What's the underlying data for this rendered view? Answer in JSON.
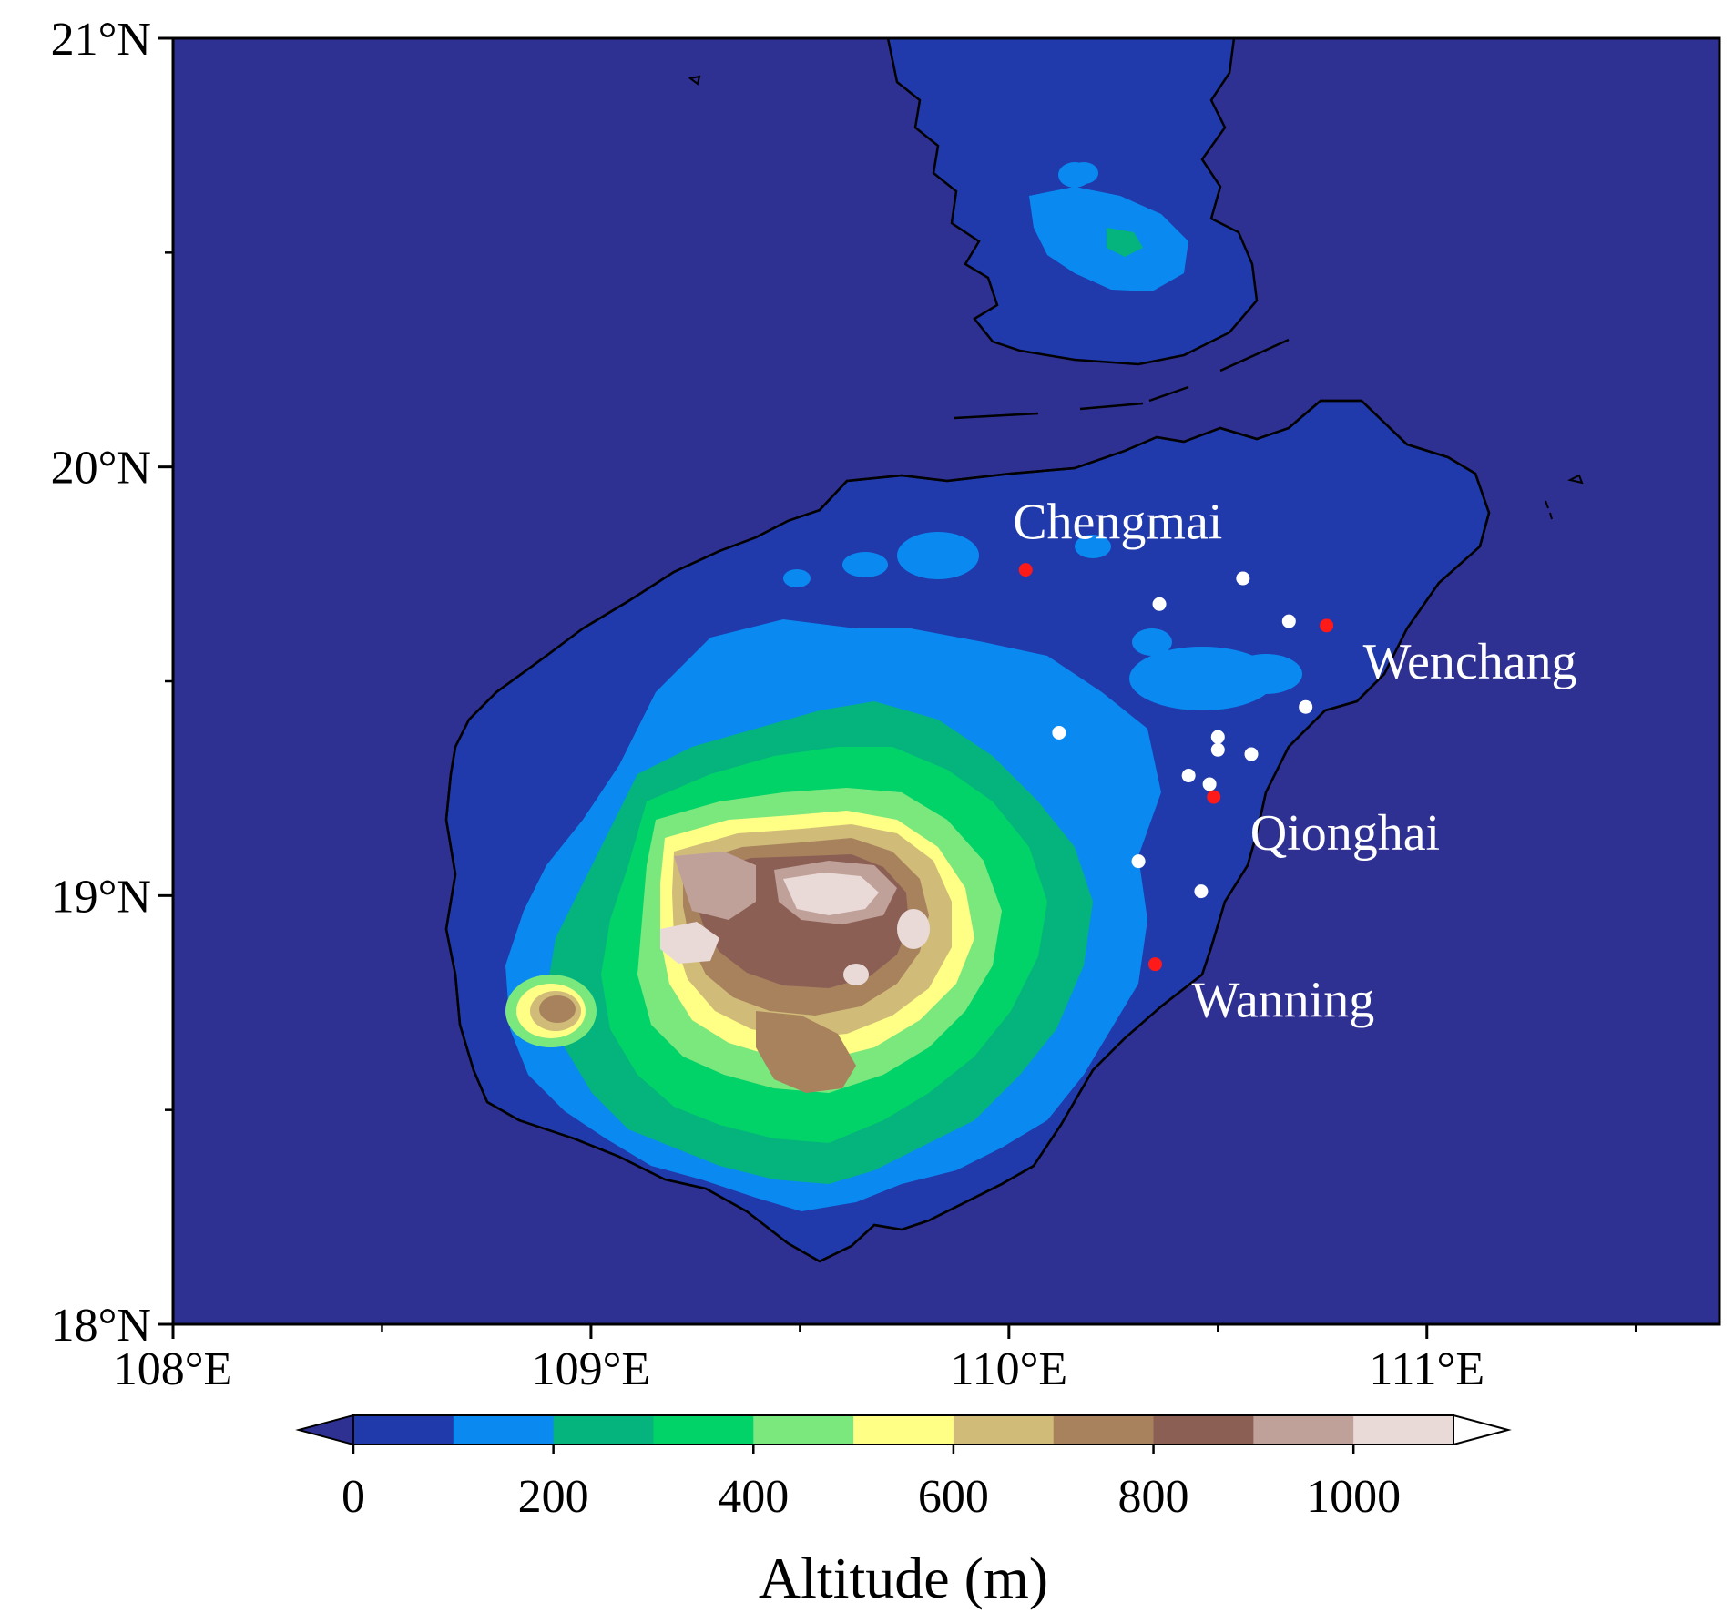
{
  "map": {
    "ocean_color": "#2e3192",
    "extent": {
      "lon": [
        108.0,
        111.7
      ],
      "lat": [
        18.0,
        21.0
      ]
    },
    "lat_ticks": [
      {
        "value": 21,
        "label": "21°N"
      },
      {
        "value": 20,
        "label": "20°N"
      },
      {
        "value": 19,
        "label": "19°N"
      },
      {
        "value": 18,
        "label": "18°N"
      }
    ],
    "lat_minor_ticks": [
      18.5,
      19.5,
      20.5
    ],
    "lon_ticks": [
      {
        "value": 108,
        "label": "108°E"
      },
      {
        "value": 109,
        "label": "109°E"
      },
      {
        "value": 110,
        "label": "110°E"
      },
      {
        "value": 111,
        "label": "111°E"
      }
    ],
    "lon_minor_ticks": [
      108.5,
      109.5,
      110.5,
      111.5
    ],
    "cities": [
      {
        "name": "Chengmai",
        "lon": 110.04,
        "lat": 19.76,
        "color": "#ff1a1a",
        "label_pos": "above"
      },
      {
        "name": "Wenchang",
        "lon": 110.76,
        "lat": 19.63,
        "color": "#ff1a1a",
        "label_pos": "below-right"
      },
      {
        "name": "Qionghai",
        "lon": 110.49,
        "lat": 19.23,
        "color": "#ff1a1a",
        "label_pos": "below-right"
      },
      {
        "name": "Wanning",
        "lon": 110.35,
        "lat": 18.84,
        "color": "#ff1a1a",
        "label_pos": "below-right"
      }
    ],
    "stations": [
      {
        "lon": 110.56,
        "lat": 19.74
      },
      {
        "lon": 110.36,
        "lat": 19.68
      },
      {
        "lon": 110.67,
        "lat": 19.64
      },
      {
        "lon": 110.71,
        "lat": 19.44
      },
      {
        "lon": 110.12,
        "lat": 19.38
      },
      {
        "lon": 110.5,
        "lat": 19.37
      },
      {
        "lon": 110.5,
        "lat": 19.34
      },
      {
        "lon": 110.58,
        "lat": 19.33
      },
      {
        "lon": 110.43,
        "lat": 19.28
      },
      {
        "lon": 110.48,
        "lat": 19.26
      },
      {
        "lon": 110.31,
        "lat": 19.08
      },
      {
        "lon": 110.46,
        "lat": 19.01
      }
    ],
    "station_color": "#ffffff"
  },
  "colorbar": {
    "title": "Altitude (m)",
    "levels": [
      0,
      100,
      200,
      300,
      400,
      500,
      600,
      700,
      800,
      900,
      1000,
      1100
    ],
    "colors": [
      "#2039ab",
      "#0a8af0",
      "#04b47c",
      "#01d369",
      "#7be87d",
      "#ffff86",
      "#d1bb78",
      "#a7825d",
      "#8c5f55",
      "#bfa199",
      "#e9dad8"
    ],
    "under_color": "#2e3192",
    "over_color": "#ffffff",
    "tick_labels": [
      {
        "value": 0,
        "label": "0"
      },
      {
        "value": 200,
        "label": "200"
      },
      {
        "value": 400,
        "label": "400"
      },
      {
        "value": 600,
        "label": "600"
      },
      {
        "value": 800,
        "label": "800"
      },
      {
        "value": 1000,
        "label": "1000"
      }
    ]
  }
}
